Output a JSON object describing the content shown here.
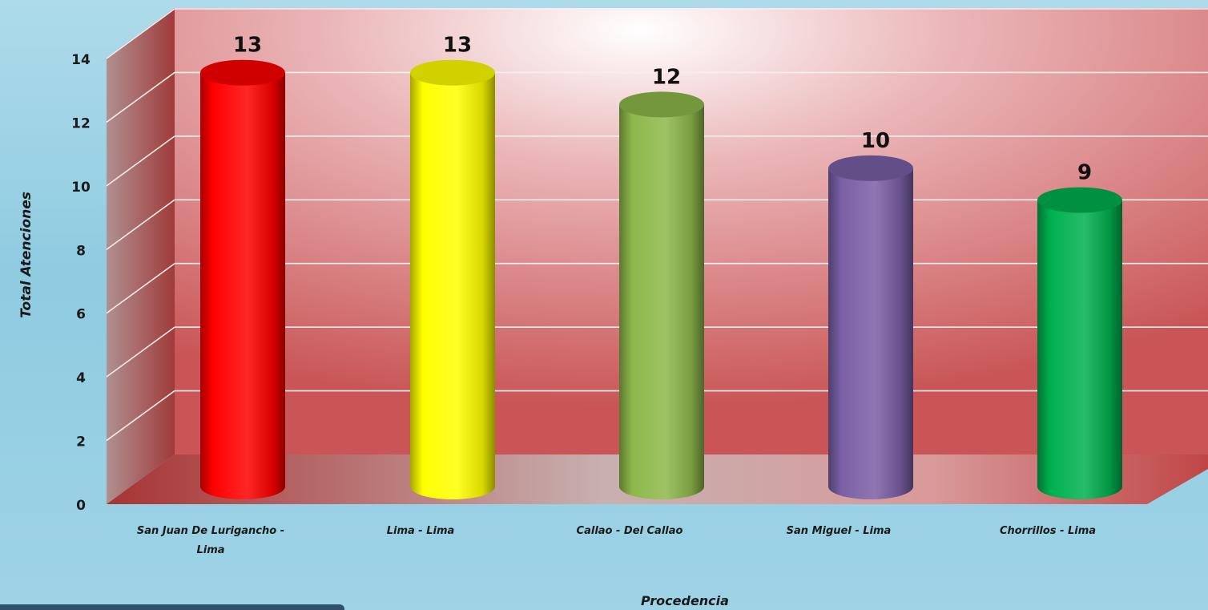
{
  "chart_data": {
    "type": "bar",
    "style": "3d-cylinder",
    "xlabel": "Procedencia",
    "ylabel": "Total Atenciones",
    "ylim": [
      0,
      14
    ],
    "yticks": [
      0,
      2,
      4,
      6,
      8,
      10,
      12,
      14
    ],
    "grid": true,
    "categories": [
      [
        "San Juan De Lurigancho -",
        "Lima"
      ],
      [
        "Lima - Lima"
      ],
      [
        "Callao - Del Callao"
      ],
      [
        "San Miguel - Lima"
      ],
      [
        "Chorrillos - Lima"
      ]
    ],
    "values": [
      13,
      13,
      12,
      10,
      9
    ],
    "data_labels": [
      "13",
      "13",
      "12",
      "10",
      "9"
    ],
    "colors": [
      "#ff0000",
      "#ffff00",
      "#8db84a",
      "#7a5fa6",
      "#00b050"
    ]
  }
}
